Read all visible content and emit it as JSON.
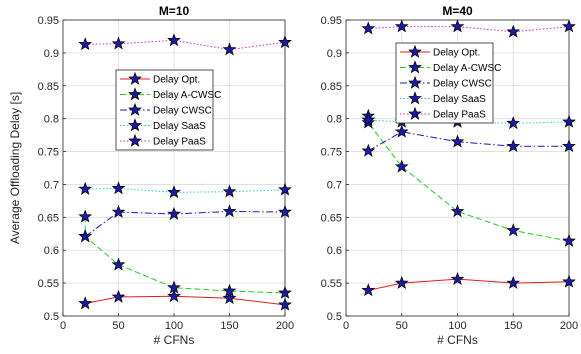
{
  "chart_data": [
    {
      "type": "line",
      "title": "M=10",
      "xlabel": "# CFNs",
      "ylabel": "Average Offloading Delay [s]",
      "xlim": [
        0,
        200
      ],
      "ylim": [
        0.5,
        0.95
      ],
      "xticks": [
        0,
        50,
        100,
        150,
        200
      ],
      "yticks": [
        0.5,
        0.55,
        0.6,
        0.65,
        0.7,
        0.75,
        0.8,
        0.85,
        0.9,
        0.95
      ],
      "grid": true,
      "legend_position": "upper-center",
      "series": [
        {
          "name": "Delay Opt.",
          "color": "#e41a1c",
          "dash": "solid",
          "x": [
            20,
            50,
            100,
            150,
            200
          ],
          "values": [
            0.519,
            0.529,
            0.53,
            0.527,
            0.517
          ]
        },
        {
          "name": "Delay A-CWSC",
          "color": "#22cc22",
          "dash": "dashed",
          "x": [
            20,
            20,
            50,
            100,
            150,
            200
          ],
          "values": [
            0.651,
            0.621,
            0.578,
            0.543,
            0.538,
            0.535
          ]
        },
        {
          "name": "Delay CWSC",
          "color": "#1a1ab3",
          "dash": "dashdot",
          "x": [
            20,
            50,
            100,
            150,
            200
          ],
          "values": [
            0.621,
            0.658,
            0.655,
            0.659,
            0.658
          ]
        },
        {
          "name": "Delay SaaS",
          "color": "#22cccc",
          "dash": "dotted",
          "x": [
            20,
            50,
            100,
            150,
            200
          ],
          "values": [
            0.693,
            0.694,
            0.688,
            0.689,
            0.692
          ]
        },
        {
          "name": "Delay PaaS",
          "color": "#cc22cc",
          "dash": "dotted",
          "x": [
            20,
            50,
            100,
            150,
            200
          ],
          "values": [
            0.913,
            0.914,
            0.919,
            0.905,
            0.916
          ]
        }
      ]
    },
    {
      "type": "line",
      "title": "M=40",
      "xlabel": "# CFNs",
      "ylabel": "",
      "xlim": [
        0,
        200
      ],
      "ylim": [
        0.5,
        0.95
      ],
      "xticks": [
        0,
        50,
        100,
        150,
        200
      ],
      "yticks": [
        0.5,
        0.55,
        0.6,
        0.65,
        0.7,
        0.75,
        0.8,
        0.85,
        0.9,
        0.95
      ],
      "grid": true,
      "legend_position": "upper-left",
      "series": [
        {
          "name": "Delay Opt.",
          "color": "#e41a1c",
          "dash": "solid",
          "x": [
            20,
            50,
            100,
            150,
            200
          ],
          "values": [
            0.539,
            0.55,
            0.556,
            0.55,
            0.552
          ]
        },
        {
          "name": "Delay A-CWSC",
          "color": "#22cc22",
          "dash": "dashed",
          "x": [
            20,
            20,
            50,
            100,
            150,
            200
          ],
          "values": [
            0.804,
            0.794,
            0.727,
            0.659,
            0.63,
            0.614
          ]
        },
        {
          "name": "Delay CWSC",
          "color": "#1a1ab3",
          "dash": "dashdot",
          "x": [
            20,
            50,
            100,
            150,
            200
          ],
          "values": [
            0.751,
            0.78,
            0.765,
            0.758,
            0.758
          ]
        },
        {
          "name": "Delay SaaS",
          "color": "#22cccc",
          "dash": "dotted",
          "x": [
            20,
            50,
            100,
            150,
            200
          ],
          "values": [
            0.798,
            0.795,
            0.795,
            0.793,
            0.795
          ]
        },
        {
          "name": "Delay PaaS",
          "color": "#cc22cc",
          "dash": "dotted",
          "x": [
            20,
            50,
            100,
            150,
            200
          ],
          "values": [
            0.937,
            0.94,
            0.94,
            0.932,
            0.94
          ]
        }
      ]
    }
  ]
}
